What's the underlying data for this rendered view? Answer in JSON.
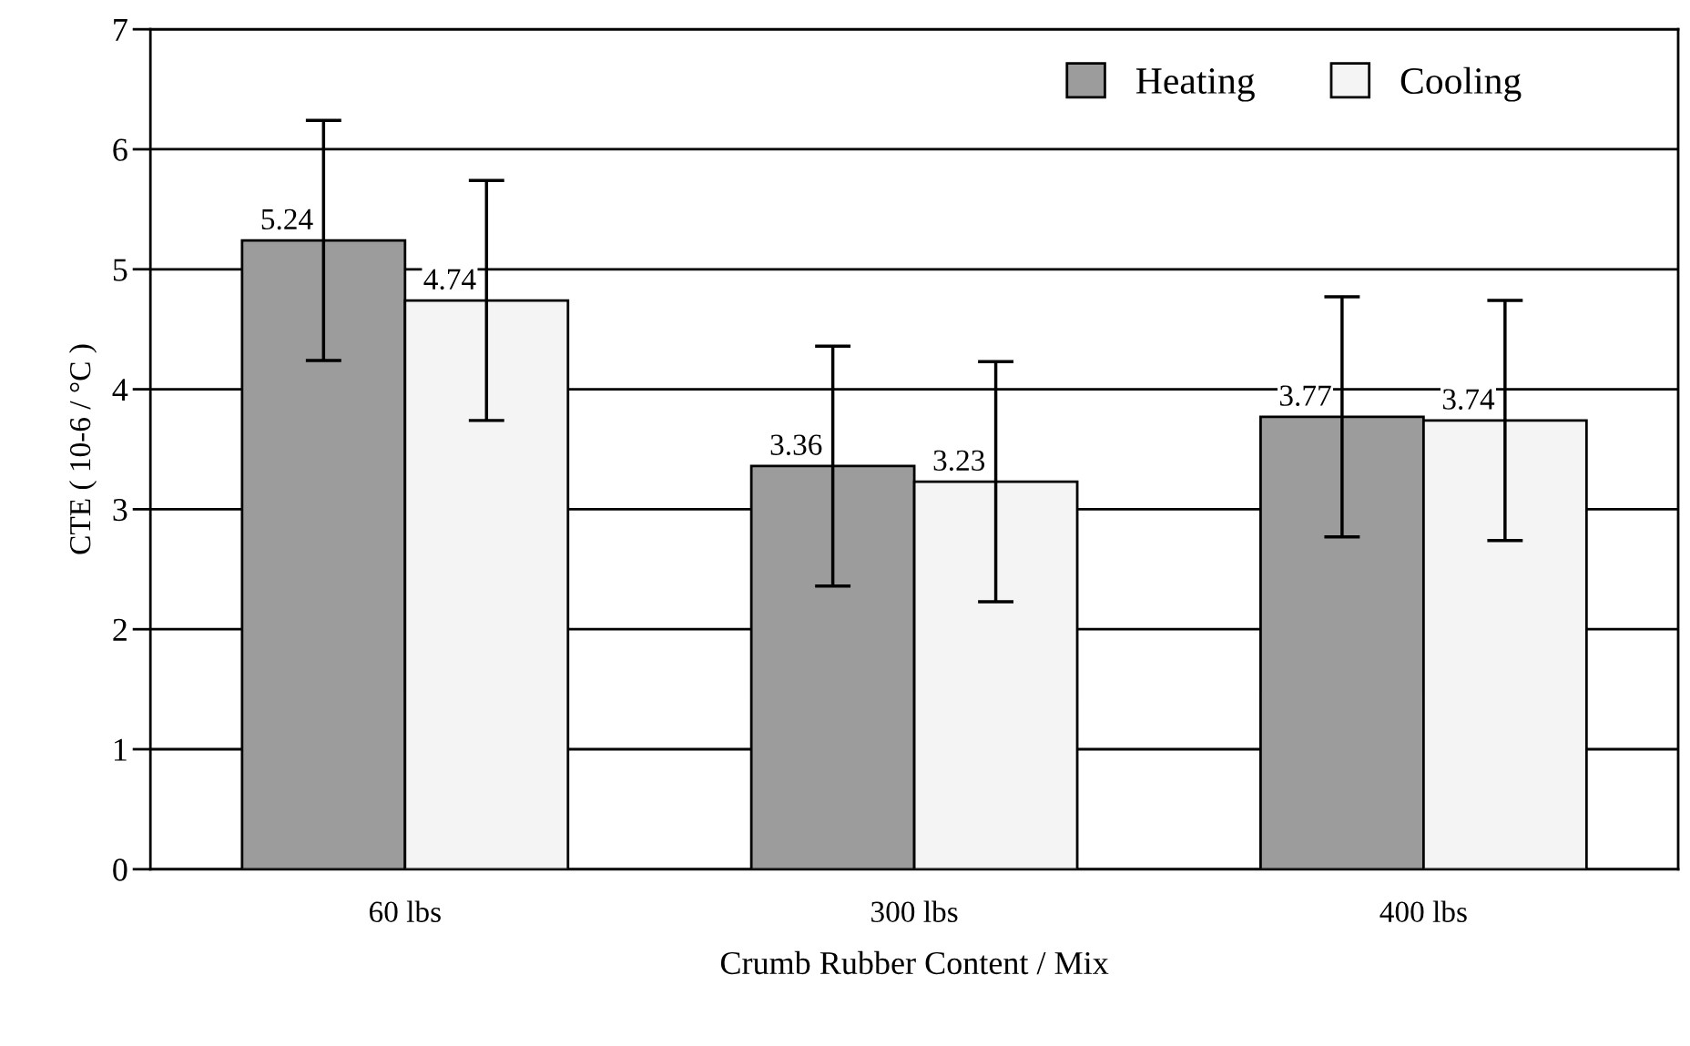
{
  "chart_data": {
    "type": "bar",
    "xlabel": "Crumb Rubber Content / Mix",
    "ylabel": "CTE ( 10-6 / °C )",
    "categories": [
      "60 lbs",
      "300 lbs",
      "400 lbs"
    ],
    "series": [
      {
        "name": "Heating",
        "color": "#9c9c9c",
        "values": [
          5.24,
          3.36,
          3.77
        ],
        "errors": [
          1.0,
          1.0,
          1.0
        ]
      },
      {
        "name": "Cooling",
        "color": "#f4f4f4",
        "values": [
          4.74,
          3.23,
          3.74
        ],
        "errors": [
          1.0,
          1.0,
          1.0
        ]
      }
    ],
    "ylim": [
      0,
      7
    ],
    "yticks": [
      0,
      1,
      2,
      3,
      4,
      5,
      6,
      7
    ],
    "grid": "y",
    "legend": "top right",
    "data_labels": true
  }
}
